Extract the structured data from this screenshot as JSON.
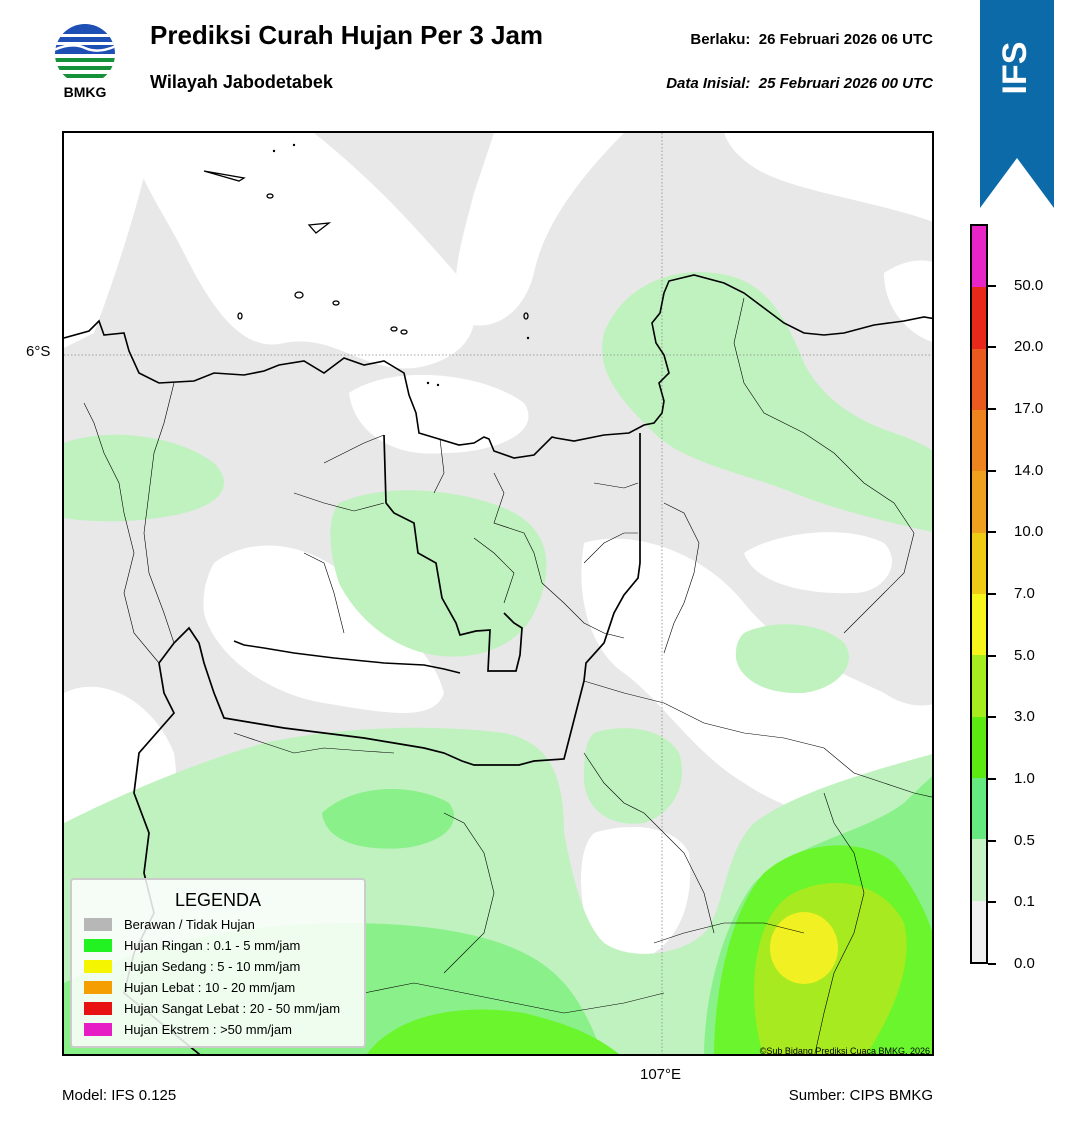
{
  "header": {
    "logo_text": "BMKG",
    "title": "Prediksi Curah Hujan Per 3 Jam",
    "subtitle": "Wilayah Jabodetabek",
    "valid_label": "Berlaku:",
    "valid_value": "26 Februari 2026 06 UTC",
    "init_label": "Data Inisial:",
    "init_value": "25 Februari 2026 00 UTC",
    "ribbon_label": "IFS",
    "ribbon_color": "#0c6aa8"
  },
  "map": {
    "lat_label": "6°S",
    "lon_label": "107°E",
    "credit": "©Sub Bidang Prediksi Cuaca BMKG, 2026",
    "colors": {
      "none": "#e8e8e8",
      "clear": "#ffffff",
      "c01": "#bff2bf",
      "c05": "#8af08a",
      "c1": "#6af52c",
      "c3": "#a8ea20",
      "c5": "#f0f022"
    }
  },
  "legend": {
    "title": "LEGENDA",
    "items": [
      {
        "label": "Berawan / Tidak Hujan",
        "color": "#b7b7b7"
      },
      {
        "label": "Hujan Ringan : 0.1 - 5 mm/jam",
        "color": "#22f222"
      },
      {
        "label": "Hujan Sedang : 5 - 10 mm/jam",
        "color": "#f5f500"
      },
      {
        "label": "Hujan Lebat : 10 - 20 mm/jam",
        "color": "#f59e00"
      },
      {
        "label": "Hujan Sangat Lebat : 20 - 50 mm/jam",
        "color": "#e81212"
      },
      {
        "label": "Hujan Ekstrem : >50 mm/jam",
        "color": "#e61cc4"
      }
    ]
  },
  "colorbar": {
    "colors_top_to_bottom": [
      "#e826c8",
      "#e8281a",
      "#ea5a1e",
      "#ee8420",
      "#eea01e",
      "#eecc16",
      "#f6f61c",
      "#a6ec1e",
      "#5cea10",
      "#66ea80",
      "#c6f2c6",
      "#f0f0f0"
    ],
    "tick_labels_top_to_bottom": [
      "50.0",
      "20.0",
      "17.0",
      "14.0",
      "10.0",
      "7.0",
      "5.0",
      "3.0",
      "1.0",
      "0.5",
      "0.1",
      "0.0"
    ]
  },
  "footer": {
    "model": "Model: IFS 0.125",
    "source": "Sumber: CIPS BMKG"
  }
}
